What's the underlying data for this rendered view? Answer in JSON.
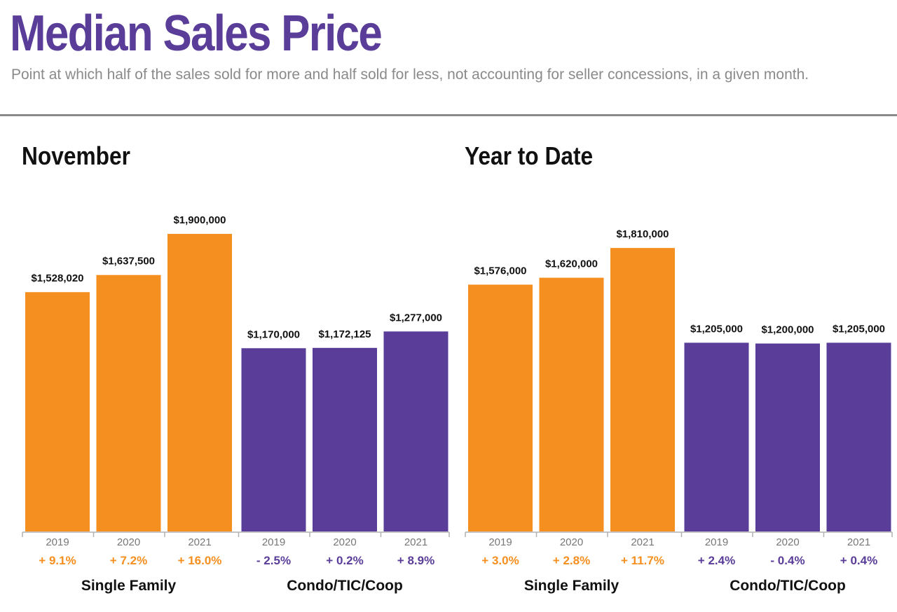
{
  "header": {
    "title": "Median Sales Price",
    "subtitle": "Point at which half of the sales sold for more and half sold for less, not accounting for seller concessions, in a given month."
  },
  "colors": {
    "single_family": "#f58f20",
    "condo": "#5a3d99",
    "title": "#5a3d99"
  },
  "chart_data": [
    {
      "type": "bar",
      "title": "November",
      "ylim": [
        0,
        2000000
      ],
      "groups": [
        {
          "name": "Single Family",
          "color_key": "single_family",
          "categories": [
            "2019",
            "2020",
            "2021"
          ],
          "values": [
            1528020,
            1637500,
            1900000
          ],
          "value_labels": [
            "$1,528,020",
            "$1,637,500",
            "$1,900,000"
          ],
          "changes": [
            "+ 9.1%",
            "+ 7.2%",
            "+ 16.0%"
          ]
        },
        {
          "name": "Condo/TIC/Coop",
          "color_key": "condo",
          "categories": [
            "2019",
            "2020",
            "2021"
          ],
          "values": [
            1170000,
            1172125,
            1277000
          ],
          "value_labels": [
            "$1,170,000",
            "$1,172,125",
            "$1,277,000"
          ],
          "changes": [
            "- 2.5%",
            "+ 0.2%",
            "+ 8.9%"
          ]
        }
      ]
    },
    {
      "type": "bar",
      "title": "Year to Date",
      "ylim": [
        0,
        2000000
      ],
      "groups": [
        {
          "name": "Single Family",
          "color_key": "single_family",
          "categories": [
            "2019",
            "2020",
            "2021"
          ],
          "values": [
            1576000,
            1620000,
            1810000
          ],
          "value_labels": [
            "$1,576,000",
            "$1,620,000",
            "$1,810,000"
          ],
          "changes": [
            "+ 3.0%",
            "+ 2.8%",
            "+ 11.7%"
          ]
        },
        {
          "name": "Condo/TIC/Coop",
          "color_key": "condo",
          "categories": [
            "2019",
            "2020",
            "2021"
          ],
          "values": [
            1205000,
            1200000,
            1205000
          ],
          "value_labels": [
            "$1,205,000",
            "$1,200,000",
            "$1,205,000"
          ],
          "changes": [
            "+ 2.4%",
            "- 0.4%",
            "+ 0.4%"
          ]
        }
      ]
    }
  ]
}
